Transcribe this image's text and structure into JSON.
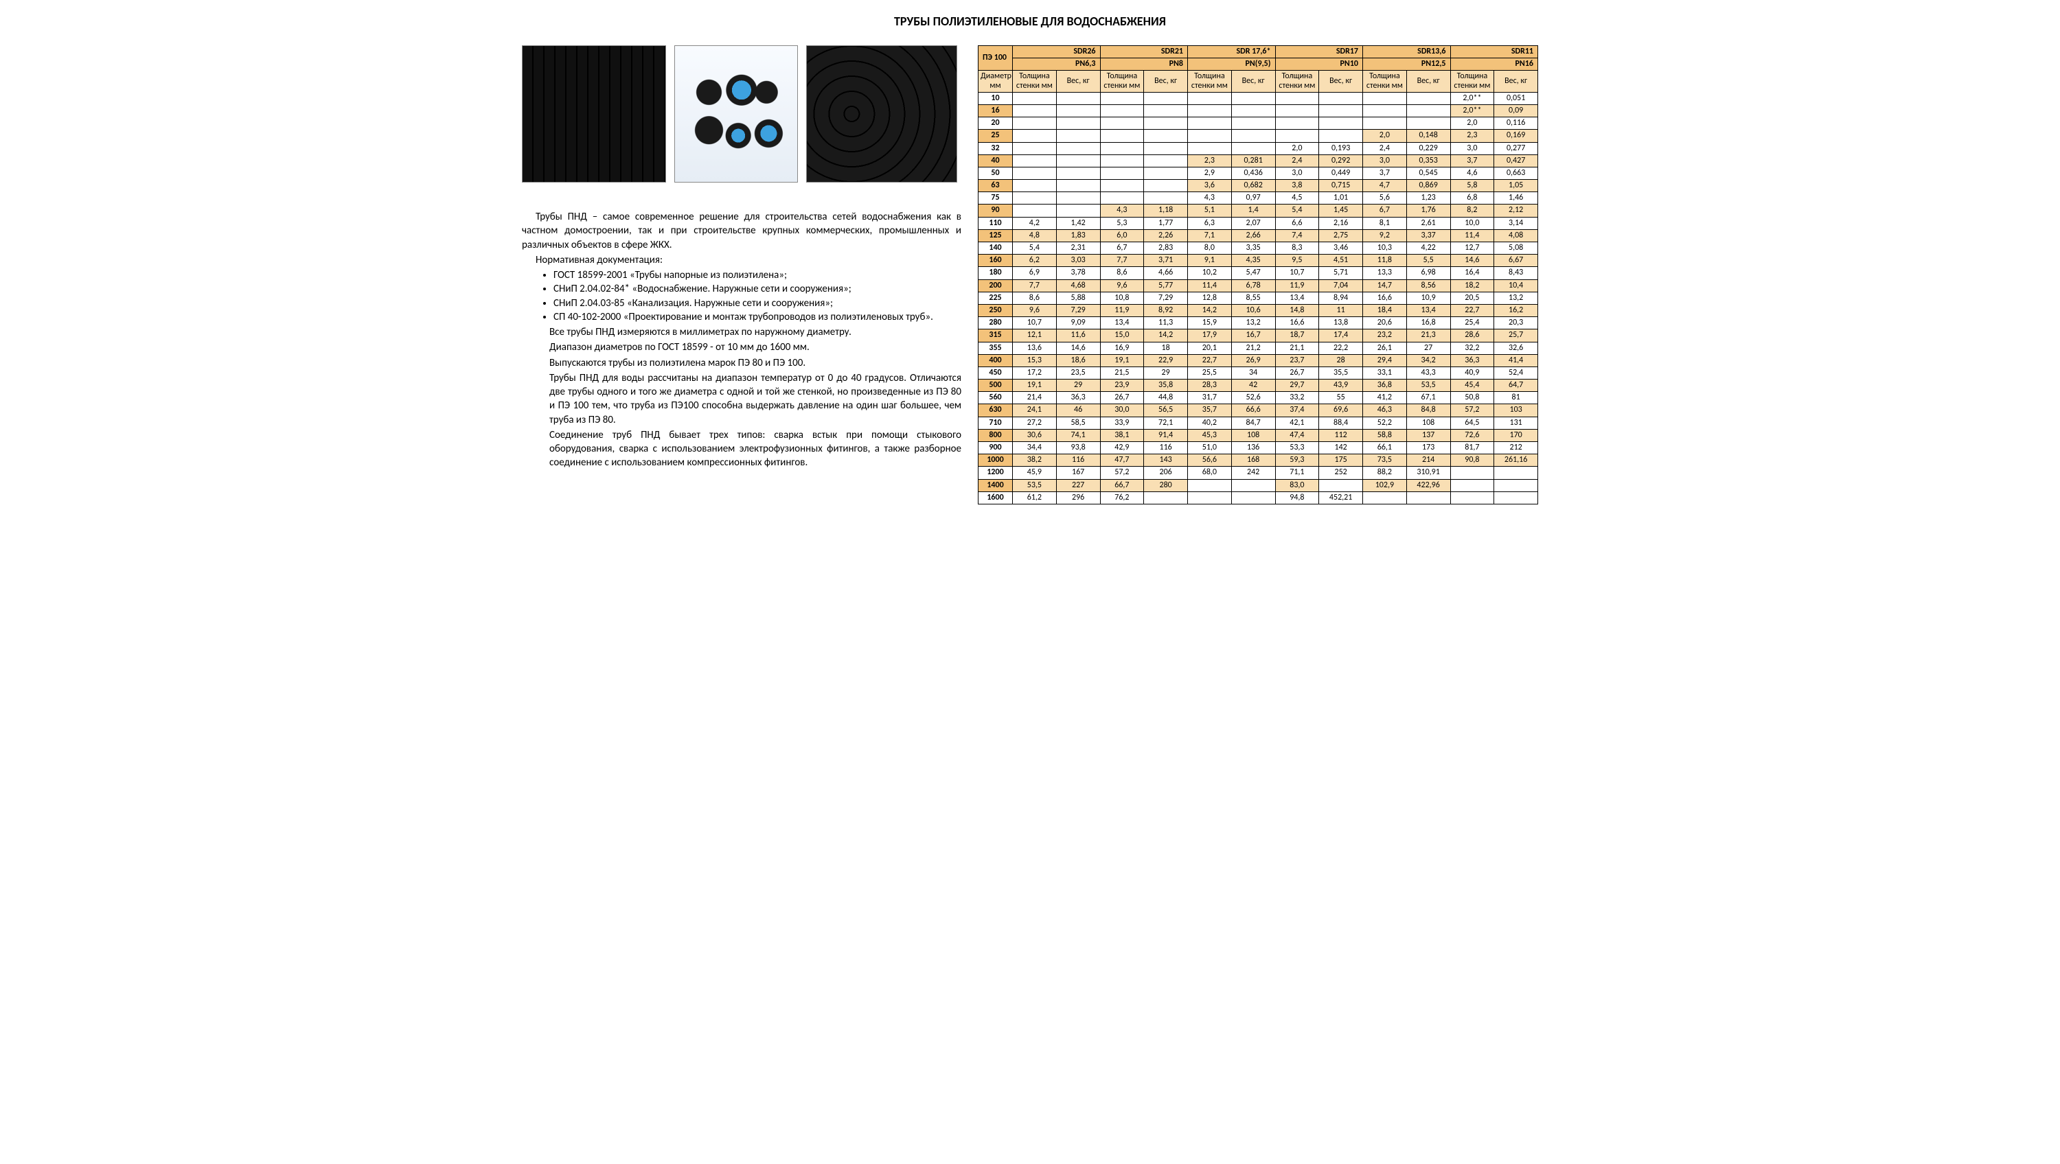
{
  "title": "ТРУБЫ ПОЛИЭТИЛЕНОВЫЕ ДЛЯ ВОДОСНАБЖЕНИЯ",
  "text": {
    "p1": "Трубы ПНД – самое современное решение для строительства сетей водоснабжения как в частном домостроении, так и при строительстве крупных коммерческих, промышленных и различных объектов в сфере ЖКХ.",
    "p2": "Нормативная документация:",
    "li1": "ГОСТ 18599-2001 «Трубы напорные из полиэтилена»;",
    "li2": "СНиП 2.04.02-84* «Водоснабжение. Наружные сети и сооружения»;",
    "li3": "СНиП 2.04.03-85 «Канализация. Наружные сети и сооружения»;",
    "li4": "СП 40-102-2000 «Проектирование и монтаж трубопроводов из по­лиэтиленовых труб».",
    "p3": "Все трубы ПНД измеряются в миллиметрах по наружному диаметру.",
    "p4": "Диапазон диаметров по ГОСТ 18599 - от 10 мм до 1600 мм.",
    "p5": "Выпускаются трубы из полиэтилена марок ПЭ 80 и ПЭ 100.",
    "p6": "Трубы ПНД для воды рассчитаны на диапазон температур от 0 до 40 градусов. Отличаются две трубы одного и того же диаметра с одной и той же стенкой, но произведенные из ПЭ 80 и ПЭ 100 тем, что труба из ПЭ100 способна выдержать давление на один шаг большее, чем тру­ба из ПЭ 80.",
    "p7": "Соединение труб ПНД бывает трех типов: сварка встык при помощи стыкового оборудования, сварка с использованием электро­фузионных фитингов, а также разборное соединение с использовани­ем компрессионных фитингов."
  },
  "table": {
    "main_label": "ПЭ 100",
    "diam_label": "Диаметр мм",
    "thick_label": "Толщина стенки мм",
    "thick_label_short": "Тол­щина стенки мм",
    "weight_label": "Вес, кг",
    "groups": [
      {
        "sdr": "SDR26",
        "pn": "PN6,3"
      },
      {
        "sdr": "SDR21",
        "pn": "PN8"
      },
      {
        "sdr": "SDR 17,6*",
        "pn": "PN(9,5)"
      },
      {
        "sdr": "SDR17",
        "pn": "PN10"
      },
      {
        "sdr": "SDR13,6",
        "pn": "PN12,5"
      },
      {
        "sdr": "SDR11",
        "pn": "PN16"
      }
    ],
    "rows": [
      {
        "d": "10",
        "v": [
          "",
          "",
          "",
          "",
          "",
          "",
          "",
          "",
          "",
          "",
          "2,0**",
          "0,051"
        ]
      },
      {
        "d": "16",
        "v": [
          "",
          "",
          "",
          "",
          "",
          "",
          "",
          "",
          "",
          "",
          "2,0**",
          "0,09"
        ]
      },
      {
        "d": "20",
        "v": [
          "",
          "",
          "",
          "",
          "",
          "",
          "",
          "",
          "",
          "",
          "2,0",
          "0,116"
        ]
      },
      {
        "d": "25",
        "v": [
          "",
          "",
          "",
          "",
          "",
          "",
          "",
          "",
          "2,0",
          "0,148",
          "2,3",
          "0,169"
        ]
      },
      {
        "d": "32",
        "v": [
          "",
          "",
          "",
          "",
          "",
          "",
          "2,0",
          "0,193",
          "2,4",
          "0,229",
          "3,0",
          "0,277"
        ]
      },
      {
        "d": "40",
        "v": [
          "",
          "",
          "",
          "",
          "2,3",
          "0,281",
          "2,4",
          "0,292",
          "3,0",
          "0,353",
          "3,7",
          "0,427"
        ]
      },
      {
        "d": "50",
        "v": [
          "",
          "",
          "",
          "",
          "2,9",
          "0,436",
          "3,0",
          "0,449",
          "3,7",
          "0,545",
          "4,6",
          "0,663"
        ]
      },
      {
        "d": "63",
        "v": [
          "",
          "",
          "",
          "",
          "3,6",
          "0,682",
          "3,8",
          "0,715",
          "4,7",
          "0,869",
          "5,8",
          "1,05"
        ]
      },
      {
        "d": "75",
        "v": [
          "",
          "",
          "",
          "",
          "4,3",
          "0,97",
          "4,5",
          "1,01",
          "5,6",
          "1,23",
          "6,8",
          "1,46"
        ]
      },
      {
        "d": "90",
        "v": [
          "",
          "",
          "4,3",
          "1,18",
          "5,1",
          "1,4",
          "5,4",
          "1,45",
          "6,7",
          "1,76",
          "8,2",
          "2,12"
        ]
      },
      {
        "d": "110",
        "v": [
          "4,2",
          "1,42",
          "5,3",
          "1,77",
          "6,3",
          "2,07",
          "6,6",
          "2,16",
          "8,1",
          "2,61",
          "10,0",
          "3,14"
        ]
      },
      {
        "d": "125",
        "v": [
          "4,8",
          "1,83",
          "6,0",
          "2,26",
          "7,1",
          "2,66",
          "7,4",
          "2,75",
          "9,2",
          "3,37",
          "11,4",
          "4,08"
        ]
      },
      {
        "d": "140",
        "v": [
          "5,4",
          "2,31",
          "6,7",
          "2,83",
          "8,0",
          "3,35",
          "8,3",
          "3,46",
          "10,3",
          "4,22",
          "12,7",
          "5,08"
        ]
      },
      {
        "d": "160",
        "v": [
          "6,2",
          "3,03",
          "7,7",
          "3,71",
          "9,1",
          "4,35",
          "9,5",
          "4,51",
          "11,8",
          "5,5",
          "14,6",
          "6,67"
        ]
      },
      {
        "d": "180",
        "v": [
          "6,9",
          "3,78",
          "8,6",
          "4,66",
          "10,2",
          "5,47",
          "10,7",
          "5,71",
          "13,3",
          "6,98",
          "16,4",
          "8,43"
        ]
      },
      {
        "d": "200",
        "v": [
          "7,7",
          "4,68",
          "9,6",
          "5,77",
          "11,4",
          "6,78",
          "11,9",
          "7,04",
          "14,7",
          "8,56",
          "18,2",
          "10,4"
        ]
      },
      {
        "d": "225",
        "v": [
          "8,6",
          "5,88",
          "10,8",
          "7,29",
          "12,8",
          "8,55",
          "13,4",
          "8,94",
          "16,6",
          "10,9",
          "20,5",
          "13,2"
        ]
      },
      {
        "d": "250",
        "v": [
          "9,6",
          "7,29",
          "11,9",
          "8,92",
          "14,2",
          "10,6",
          "14,8",
          "11",
          "18,4",
          "13,4",
          "22,7",
          "16,2"
        ]
      },
      {
        "d": "280",
        "v": [
          "10,7",
          "9,09",
          "13,4",
          "11,3",
          "15,9",
          "13,2",
          "16,6",
          "13,8",
          "20,6",
          "16,8",
          "25,4",
          "20,3"
        ]
      },
      {
        "d": "315",
        "v": [
          "12,1",
          "11,6",
          "15,0",
          "14,2",
          "17,9",
          "16,7",
          "18,7",
          "17,4",
          "23,2",
          "21,3",
          "28,6",
          "25,7"
        ]
      },
      {
        "d": "355",
        "v": [
          "13,6",
          "14,6",
          "16,9",
          "18",
          "20,1",
          "21,2",
          "21,1",
          "22,2",
          "26,1",
          "27",
          "32,2",
          "32,6"
        ]
      },
      {
        "d": "400",
        "v": [
          "15,3",
          "18,6",
          "19,1",
          "22,9",
          "22,7",
          "26,9",
          "23,7",
          "28",
          "29,4",
          "34,2",
          "36,3",
          "41,4"
        ]
      },
      {
        "d": "450",
        "v": [
          "17,2",
          "23,5",
          "21,5",
          "29",
          "25,5",
          "34",
          "26,7",
          "35,5",
          "33,1",
          "43,3",
          "40,9",
          "52,4"
        ]
      },
      {
        "d": "500",
        "v": [
          "19,1",
          "29",
          "23,9",
          "35,8",
          "28,3",
          "42",
          "29,7",
          "43,9",
          "36,8",
          "53,5",
          "45,4",
          "64,7"
        ]
      },
      {
        "d": "560",
        "v": [
          "21,4",
          "36,3",
          "26,7",
          "44,8",
          "31,7",
          "52,6",
          "33,2",
          "55",
          "41,2",
          "67,1",
          "50,8",
          "81"
        ]
      },
      {
        "d": "630",
        "v": [
          "24,1",
          "46",
          "30,0",
          "56,5",
          "35,7",
          "66,6",
          "37,4",
          "69,6",
          "46,3",
          "84,8",
          "57,2",
          "103"
        ]
      },
      {
        "d": "710",
        "v": [
          "27,2",
          "58,5",
          "33,9",
          "72,1",
          "40,2",
          "84,7",
          "42,1",
          "88,4",
          "52,2",
          "108",
          "64,5",
          "131"
        ]
      },
      {
        "d": "800",
        "v": [
          "30,6",
          "74,1",
          "38,1",
          "91,4",
          "45,3",
          "108",
          "47,4",
          "112",
          "58,8",
          "137",
          "72,6",
          "170"
        ]
      },
      {
        "d": "900",
        "v": [
          "34,4",
          "93,8",
          "42,9",
          "116",
          "51,0",
          "136",
          "53,3",
          "142",
          "66,1",
          "173",
          "81,7",
          "212"
        ]
      },
      {
        "d": "1000",
        "v": [
          "38,2",
          "116",
          "47,7",
          "143",
          "56,6",
          "168",
          "59,3",
          "175",
          "73,5",
          "214",
          "90,8",
          "261,16"
        ]
      },
      {
        "d": "1200",
        "v": [
          "45,9",
          "167",
          "57,2",
          "206",
          "68,0",
          "242",
          "71,1",
          "252",
          "88,2",
          "310,91",
          "",
          ""
        ]
      },
      {
        "d": "1400",
        "v": [
          "53,5",
          "227",
          "66,7",
          "280",
          "",
          "",
          "83,0",
          "",
          "102,9",
          "422,96",
          "",
          ""
        ]
      },
      {
        "d": "1600",
        "v": [
          "61,2",
          "296",
          "76,2",
          "",
          "",
          "",
          "94,8",
          "452,21",
          "",
          "",
          "",
          ""
        ]
      }
    ]
  }
}
